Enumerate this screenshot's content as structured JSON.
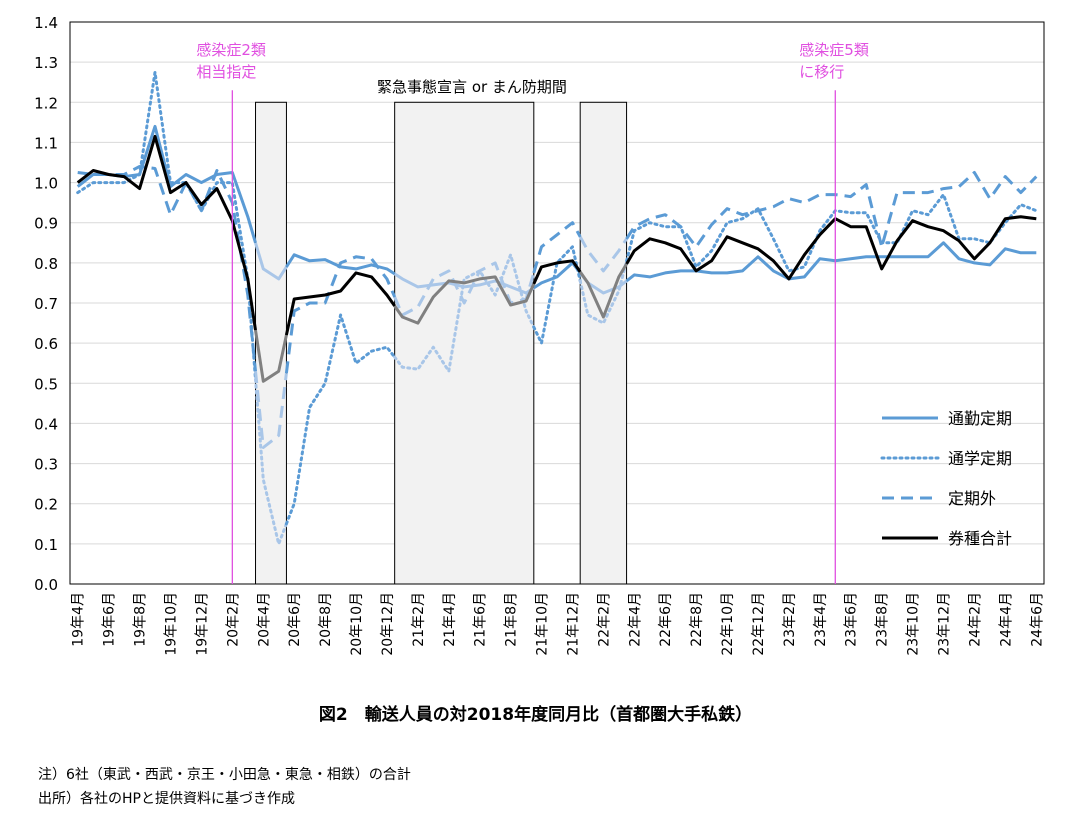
{
  "chart_data": {
    "type": "line",
    "title": "図2　輸送人員の対2018年度同月比（首都圏大手私鉄）",
    "ylim": [
      0.0,
      1.4
    ],
    "y_ticks": [
      "0.0",
      "0.1",
      "0.2",
      "0.3",
      "0.4",
      "0.5",
      "0.6",
      "0.7",
      "0.8",
      "0.9",
      "1.0",
      "1.1",
      "1.2",
      "1.3",
      "1.4"
    ],
    "x": [
      "19年4月",
      "19年5月",
      "19年6月",
      "19年7月",
      "19年8月",
      "19年9月",
      "19年10月",
      "19年11月",
      "19年12月",
      "20年1月",
      "20年2月",
      "20年3月",
      "20年4月",
      "20年5月",
      "20年6月",
      "20年7月",
      "20年8月",
      "20年9月",
      "20年10月",
      "20年11月",
      "20年12月",
      "21年1月",
      "21年2月",
      "21年3月",
      "21年4月",
      "21年5月",
      "21年6月",
      "21年7月",
      "21年8月",
      "21年9月",
      "21年10月",
      "21年11月",
      "21年12月",
      "22年1月",
      "22年2月",
      "22年3月",
      "22年4月",
      "22年5月",
      "22年6月",
      "22年7月",
      "22年8月",
      "22年9月",
      "22年10月",
      "22年11月",
      "22年12月",
      "23年1月",
      "23年2月",
      "23年3月",
      "23年4月",
      "23年5月",
      "23年6月",
      "23年7月",
      "23年8月",
      "23年9月",
      "23年10月",
      "23年11月",
      "23年12月",
      "24年1月",
      "24年2月",
      "24年3月",
      "24年4月",
      "24年5月",
      "24年6月"
    ],
    "x_tick_labels": [
      "19年4月",
      "19年6月",
      "19年8月",
      "19年10月",
      "19年12月",
      "20年2月",
      "20年4月",
      "20年6月",
      "20年8月",
      "20年10月",
      "20年12月",
      "21年2月",
      "21年4月",
      "21年6月",
      "21年8月",
      "21年10月",
      "21年12月",
      "22年2月",
      "22年4月",
      "22年6月",
      "22年8月",
      "22年10月",
      "22年12月",
      "23年2月",
      "23年4月",
      "23年6月",
      "23年8月",
      "23年10月",
      "23年12月",
      "24年2月",
      "24年4月",
      "24年6月"
    ],
    "series": [
      {
        "name": "通勤定期",
        "style": "solid",
        "color": "#5b9bd5",
        "width": 3,
        "values": [
          0.99,
          1.02,
          1.02,
          1.015,
          1.02,
          1.14,
          0.99,
          1.02,
          1.0,
          1.02,
          1.025,
          0.915,
          0.785,
          0.76,
          0.82,
          0.805,
          0.808,
          0.79,
          0.785,
          0.795,
          0.785,
          0.76,
          0.74,
          0.745,
          0.75,
          0.74,
          0.745,
          0.755,
          0.74,
          0.725,
          0.75,
          0.765,
          0.8,
          0.75,
          0.725,
          0.74,
          0.77,
          0.765,
          0.775,
          0.78,
          0.78,
          0.775,
          0.775,
          0.78,
          0.815,
          0.78,
          0.76,
          0.765,
          0.81,
          0.805,
          0.81,
          0.815,
          0.815,
          0.815,
          0.815,
          0.815,
          0.85,
          0.81,
          0.8,
          0.795,
          0.835,
          0.825,
          0.825
        ]
      },
      {
        "name": "通学定期",
        "style": "dotted",
        "color": "#5b9bd5",
        "width": 3,
        "values": [
          0.975,
          1.0,
          1.0,
          1.0,
          1.02,
          1.275,
          1.0,
          1.0,
          0.93,
          1.0,
          1.0,
          0.76,
          0.26,
          0.1,
          0.2,
          0.44,
          0.5,
          0.67,
          0.55,
          0.58,
          0.59,
          0.54,
          0.535,
          0.59,
          0.53,
          0.76,
          0.78,
          0.72,
          0.82,
          0.68,
          0.6,
          0.8,
          0.84,
          0.67,
          0.65,
          0.73,
          0.88,
          0.9,
          0.89,
          0.89,
          0.79,
          0.83,
          0.9,
          0.91,
          0.935,
          0.86,
          0.78,
          0.79,
          0.88,
          0.93,
          0.925,
          0.925,
          0.85,
          0.85,
          0.93,
          0.92,
          0.97,
          0.86,
          0.86,
          0.85,
          0.9,
          0.945,
          0.93
        ]
      },
      {
        "name": "定期外",
        "style": "dashed",
        "color": "#5b9bd5",
        "width": 3,
        "values": [
          1.025,
          1.02,
          1.02,
          1.02,
          1.04,
          1.035,
          0.92,
          1.0,
          0.93,
          1.03,
          0.95,
          0.72,
          0.34,
          0.37,
          0.68,
          0.7,
          0.7,
          0.8,
          0.815,
          0.81,
          0.76,
          0.67,
          0.69,
          0.76,
          0.78,
          0.7,
          0.78,
          0.8,
          0.7,
          0.71,
          0.84,
          0.87,
          0.9,
          0.83,
          0.78,
          0.83,
          0.89,
          0.91,
          0.92,
          0.89,
          0.84,
          0.895,
          0.935,
          0.92,
          0.93,
          0.94,
          0.96,
          0.95,
          0.97,
          0.97,
          0.965,
          0.995,
          0.84,
          0.975,
          0.975,
          0.975,
          0.985,
          0.99,
          1.025,
          0.96,
          1.015,
          0.975,
          1.015
        ]
      },
      {
        "name": "券種合計",
        "style": "solid",
        "color": "#000000",
        "width": 3,
        "values": [
          1.0,
          1.03,
          1.02,
          1.015,
          0.985,
          1.115,
          0.975,
          1.0,
          0.945,
          0.985,
          0.905,
          0.76,
          0.505,
          0.53,
          0.71,
          0.715,
          0.72,
          0.73,
          0.775,
          0.765,
          0.72,
          0.665,
          0.65,
          0.715,
          0.755,
          0.75,
          0.76,
          0.765,
          0.695,
          0.705,
          0.79,
          0.8,
          0.805,
          0.75,
          0.665,
          0.765,
          0.83,
          0.86,
          0.85,
          0.835,
          0.78,
          0.805,
          0.865,
          0.85,
          0.835,
          0.805,
          0.76,
          0.82,
          0.87,
          0.91,
          0.89,
          0.89,
          0.785,
          0.855,
          0.905,
          0.89,
          0.88,
          0.855,
          0.81,
          0.85,
          0.91,
          0.915,
          0.91
        ]
      }
    ],
    "legend": {
      "placement": "bottom-right",
      "entries": [
        "通勤定期",
        "通学定期",
        "定期外",
        "券種合計"
      ]
    },
    "shaded_periods_label": "緊急事態宣言 or まん防期間",
    "shaded_periods": [
      {
        "start": "20年4月",
        "end": "20年5月"
      },
      {
        "start": "21年1月",
        "end": "21年9月"
      },
      {
        "start": "22年1月",
        "end": "22年3月"
      }
    ],
    "markers": [
      {
        "label_lines": [
          "感染症2類",
          "相当指定"
        ],
        "at": "20年2月",
        "color": "#e04fe0"
      },
      {
        "label_lines": [
          "感染症5類",
          "に移行"
        ],
        "at": "23年5月",
        "color": "#e04fe0"
      }
    ],
    "grid": "horizontal",
    "grid_color": "#d9d9d9",
    "shade_color": "#f2f2f2",
    "gray_color": "#808080"
  },
  "notes": [
    "注）6社（東武・西武・京王・小田急・東急・相鉄）の合計",
    "出所）各社のHPと提供資料に基づき作成"
  ]
}
